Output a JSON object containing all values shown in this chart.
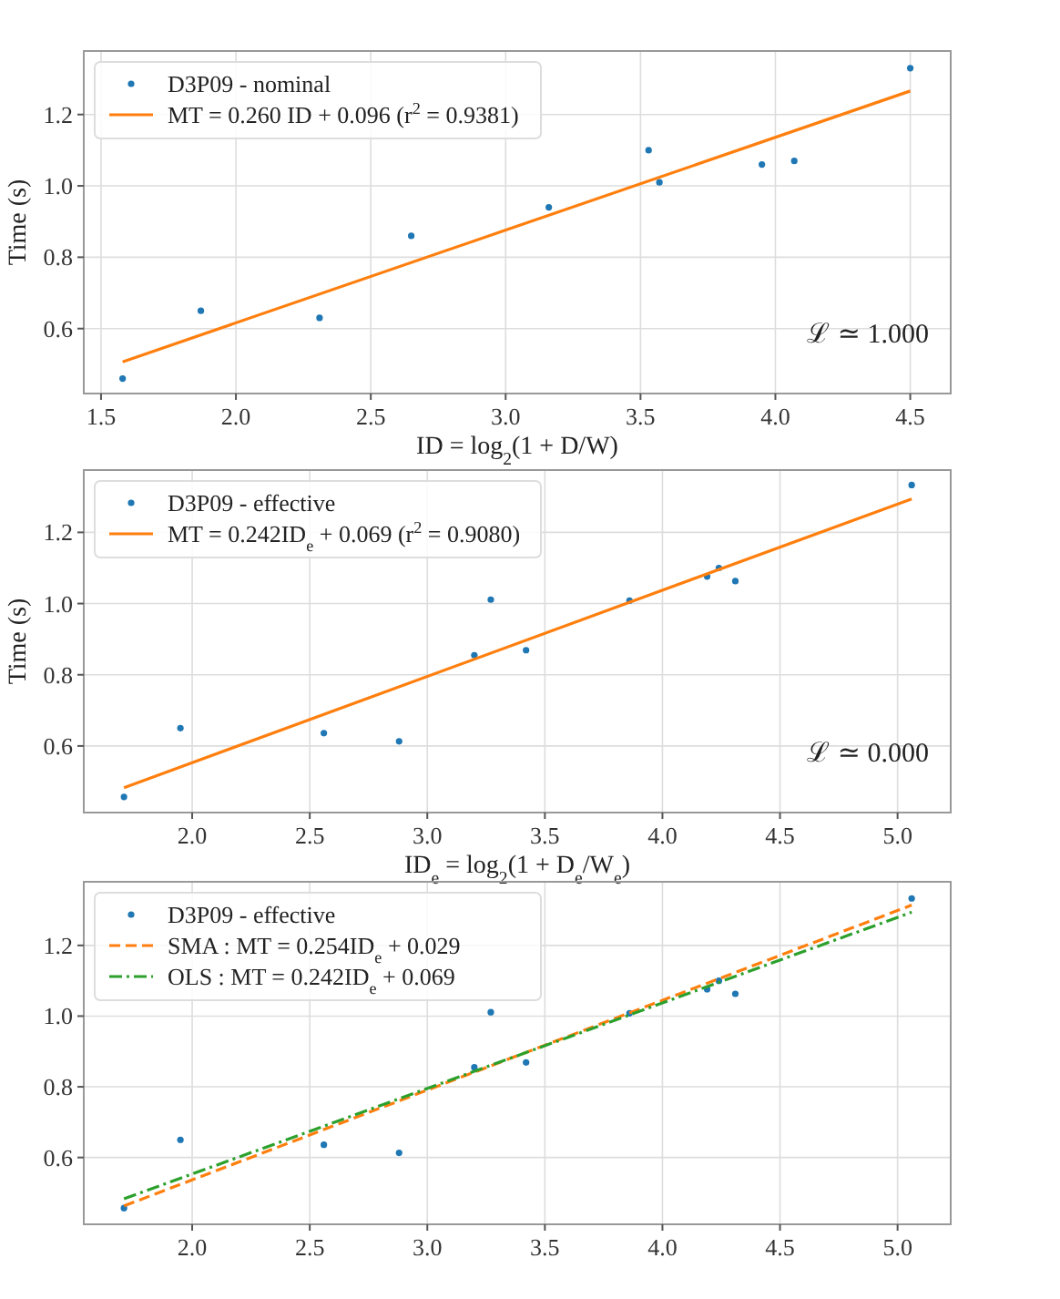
{
  "chart_data": [
    {
      "type": "scatter",
      "xlabel": "ID = log$_{2}$(1 + D/W)",
      "ylabel": "Time (s)",
      "xlim": [
        1.436,
        4.65
      ],
      "ylim": [
        0.418,
        1.378
      ],
      "xticks": [
        {
          "value": 1.5,
          "label": "1.5"
        },
        {
          "value": 2,
          "label": "2.0"
        },
        {
          "value": 2.5,
          "label": "2.5"
        },
        {
          "value": 3,
          "label": "3.0"
        },
        {
          "value": 3.5,
          "label": "3.5"
        },
        {
          "value": 4,
          "label": "4.0"
        },
        {
          "value": 4.5,
          "label": "4.5"
        }
      ],
      "yticks": [
        {
          "value": 0.6,
          "label": "0.6"
        },
        {
          "value": 0.8,
          "label": "0.8"
        },
        {
          "value": 1,
          "label": "1.0"
        },
        {
          "value": 1.2,
          "label": "1.2"
        }
      ],
      "grid": true,
      "legend": "top left",
      "annotations": [
        "ℒ ≃ 1.000"
      ],
      "series": [
        {
          "name": "D3P09 - nominal",
          "color": "#1f77b4",
          "marker": "circle",
          "x": [
            1.58,
            1.87,
            2.31,
            2.65,
            3.16,
            3.53,
            3.57,
            3.95,
            4.07,
            4.5
          ],
          "values": [
            0.46,
            0.65,
            0.63,
            0.86,
            0.94,
            1.1,
            1.01,
            1.06,
            1.07,
            1.33
          ]
        },
        {
          "type": "line",
          "name": "MT = 0.260 ID + 0.096 (r$^{2}$ = 0.9381)",
          "color": "#ff7f0e",
          "line_style": "solid",
          "x": [
            1.58,
            4.5
          ],
          "values": [
            0.507,
            1.266
          ]
        }
      ]
    },
    {
      "type": "scatter",
      "xlabel": "ID$_{e}$ = log$_{2}$(1 + D$_{e}$/W$_{e}$)",
      "ylabel": "Time (s)",
      "xlim": [
        1.539,
        5.226
      ],
      "ylim": [
        0.413,
        1.375
      ],
      "xticks": [
        {
          "value": 2,
          "label": "2.0"
        },
        {
          "value": 2.5,
          "label": "2.5"
        },
        {
          "value": 3,
          "label": "3.0"
        },
        {
          "value": 3.5,
          "label": "3.5"
        },
        {
          "value": 4,
          "label": "4.0"
        },
        {
          "value": 4.5,
          "label": "4.5"
        },
        {
          "value": 5,
          "label": "5.0"
        }
      ],
      "yticks": [
        {
          "value": 0.6,
          "label": "0.6"
        },
        {
          "value": 0.8,
          "label": "0.8"
        },
        {
          "value": 1,
          "label": "1.0"
        },
        {
          "value": 1.2,
          "label": "1.2"
        }
      ],
      "grid": true,
      "legend": "top left",
      "annotations": [
        "ℒ ≃ 0.000"
      ],
      "series": [
        {
          "name": "D3P09 - effective",
          "color": "#1f77b4",
          "marker": "circle",
          "x": [
            1.71,
            1.95,
            2.56,
            2.88,
            3.2,
            3.27,
            3.42,
            3.86,
            4.19,
            4.24,
            4.31,
            5.06
          ],
          "values": [
            0.457,
            0.65,
            0.636,
            0.613,
            0.855,
            1.011,
            0.869,
            1.008,
            1.076,
            1.1,
            1.063,
            1.333
          ]
        },
        {
          "type": "line",
          "name": "MT = 0.242ID$_{e}$ + 0.069 (r$^{2}$ = 0.9080)",
          "color": "#ff7f0e",
          "line_style": "solid",
          "x": [
            1.71,
            5.06
          ],
          "values": [
            0.483,
            1.294
          ]
        }
      ]
    },
    {
      "type": "scatter",
      "xlim": [
        1.539,
        5.226
      ],
      "ylim": [
        0.411,
        1.38
      ],
      "xticks": [
        {
          "value": 2,
          "label": "2.0"
        },
        {
          "value": 2.5,
          "label": "2.5"
        },
        {
          "value": 3,
          "label": "3.0"
        },
        {
          "value": 3.5,
          "label": "3.5"
        },
        {
          "value": 4,
          "label": "4.0"
        },
        {
          "value": 4.5,
          "label": "4.5"
        },
        {
          "value": 5,
          "label": "5.0"
        }
      ],
      "yticks": [
        {
          "value": 0.6,
          "label": "0.6"
        },
        {
          "value": 0.8,
          "label": "0.8"
        },
        {
          "value": 1,
          "label": "1.0"
        },
        {
          "value": 1.2,
          "label": "1.2"
        }
      ],
      "grid": true,
      "legend": "top left",
      "series": [
        {
          "name": "D3P09 - effective",
          "color": "#1f77b4",
          "marker": "circle",
          "x": [
            1.71,
            1.95,
            2.56,
            2.88,
            3.2,
            3.27,
            3.42,
            3.86,
            4.19,
            4.24,
            4.31,
            5.06
          ],
          "values": [
            0.457,
            0.65,
            0.636,
            0.613,
            0.855,
            1.011,
            0.869,
            1.008,
            1.076,
            1.1,
            1.063,
            1.333
          ]
        },
        {
          "type": "line",
          "name": "SMA : MT = 0.254ID$_{e}$ + 0.029",
          "color": "#ff7f0e",
          "line_style": "dashed",
          "x": [
            1.71,
            5.06
          ],
          "values": [
            0.463,
            1.314
          ]
        },
        {
          "type": "line",
          "name": "OLS : MT = 0.242ID$_{e}$ + 0.069",
          "color": "#2ca02c",
          "line_style": "dashdot",
          "x": [
            1.71,
            5.06
          ],
          "values": [
            0.483,
            1.294
          ]
        }
      ]
    }
  ]
}
